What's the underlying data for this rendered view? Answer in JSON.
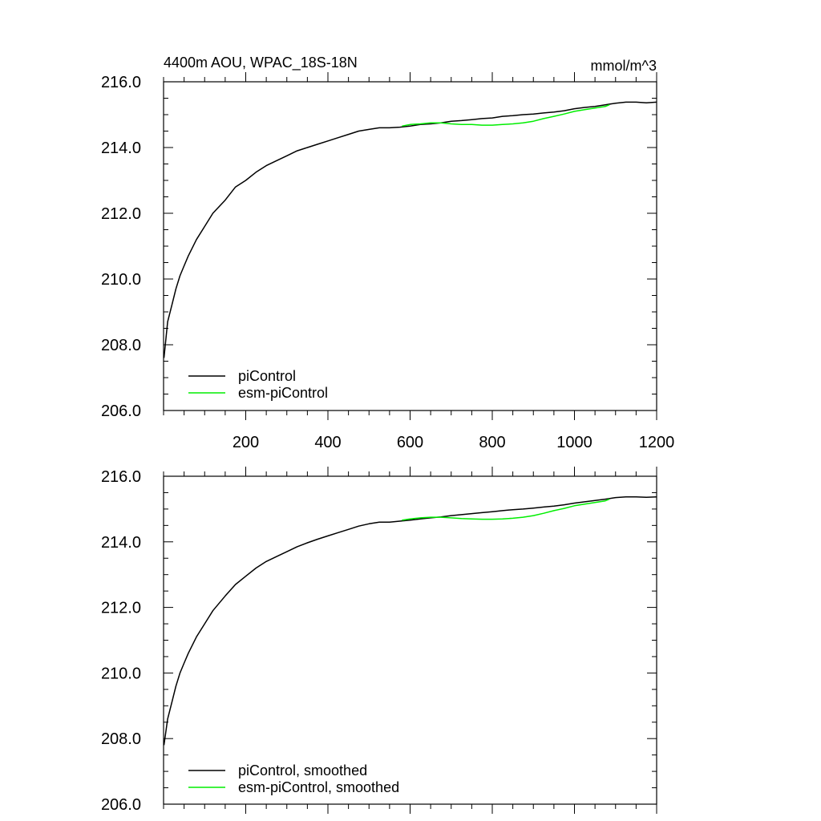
{
  "chart_data": [
    {
      "type": "line",
      "title_left": "4400m AOU, WPAC_18S-18N",
      "title_right": "mmol/m^3",
      "xlim": [
        0,
        1200
      ],
      "ylim": [
        206,
        216
      ],
      "y_ticks": [
        "206.0",
        "208.0",
        "210.0",
        "212.0",
        "214.0",
        "216.0"
      ],
      "x_ticks": [
        "200",
        "400",
        "600",
        "800",
        "1000",
        "1200"
      ],
      "grid": false,
      "legend_position": "bottom-left",
      "colors": {
        "piControl": "#000000",
        "esm-piControl": "#00ee00"
      },
      "series": [
        {
          "name": "piControl",
          "x": [
            1,
            10,
            20,
            30,
            40,
            50,
            60,
            80,
            100,
            120,
            150,
            175,
            200,
            225,
            250,
            275,
            300,
            325,
            350,
            375,
            400,
            425,
            450,
            475,
            500,
            525,
            550,
            575,
            600,
            625,
            650,
            675,
            700,
            725,
            750,
            775,
            800,
            825,
            850,
            875,
            900,
            925,
            950,
            975,
            1000,
            1025,
            1050,
            1075,
            1100,
            1125,
            1150,
            1175,
            1200
          ],
          "y": [
            207.6,
            208.7,
            209.2,
            209.7,
            210.1,
            210.4,
            210.7,
            211.2,
            211.6,
            212.0,
            212.4,
            212.8,
            213.0,
            213.25,
            213.45,
            213.6,
            213.75,
            213.9,
            214.0,
            214.1,
            214.2,
            214.3,
            214.4,
            214.5,
            214.55,
            214.6,
            214.6,
            214.62,
            214.65,
            214.7,
            214.72,
            214.75,
            214.8,
            214.82,
            214.85,
            214.88,
            214.9,
            214.95,
            214.97,
            215.0,
            215.02,
            215.05,
            215.08,
            215.12,
            215.18,
            215.22,
            215.25,
            215.3,
            215.35,
            215.38,
            215.38,
            215.36,
            215.38
          ]
        },
        {
          "name": "esm-piControl",
          "x": [
            580,
            600,
            625,
            650,
            675,
            700,
            725,
            750,
            775,
            800,
            825,
            850,
            875,
            900,
            925,
            950,
            975,
            1000,
            1025,
            1050,
            1075,
            1085
          ],
          "y": [
            214.65,
            214.7,
            214.72,
            214.75,
            214.75,
            214.72,
            214.7,
            214.7,
            214.68,
            214.68,
            214.7,
            214.72,
            214.75,
            214.8,
            214.88,
            214.95,
            215.02,
            215.1,
            215.15,
            215.2,
            215.25,
            215.3
          ]
        }
      ]
    },
    {
      "type": "line",
      "xlim": [
        0,
        1200
      ],
      "ylim": [
        206,
        216
      ],
      "y_ticks": [
        "206.0",
        "208.0",
        "210.0",
        "212.0",
        "214.0",
        "216.0"
      ],
      "grid": false,
      "legend_position": "bottom-left",
      "colors": {
        "piControl, smoothed": "#000000",
        "esm-piControl, smoothed": "#00ee00"
      },
      "series": [
        {
          "name": "piControl, smoothed",
          "x": [
            1,
            10,
            20,
            30,
            40,
            50,
            60,
            80,
            100,
            120,
            150,
            175,
            200,
            225,
            250,
            275,
            300,
            325,
            350,
            375,
            400,
            425,
            450,
            475,
            500,
            525,
            550,
            575,
            600,
            625,
            650,
            675,
            700,
            725,
            750,
            775,
            800,
            825,
            850,
            875,
            900,
            925,
            950,
            975,
            1000,
            1025,
            1050,
            1075,
            1100,
            1125,
            1150,
            1175,
            1200
          ],
          "y": [
            207.8,
            208.6,
            209.1,
            209.6,
            210.0,
            210.3,
            210.6,
            211.1,
            211.5,
            211.9,
            212.35,
            212.7,
            212.95,
            213.2,
            213.4,
            213.55,
            213.7,
            213.85,
            213.97,
            214.08,
            214.18,
            214.28,
            214.38,
            214.48,
            214.55,
            214.6,
            214.6,
            214.63,
            214.66,
            214.7,
            214.73,
            214.76,
            214.8,
            214.83,
            214.86,
            214.89,
            214.92,
            214.95,
            214.98,
            215.0,
            215.03,
            215.06,
            215.09,
            215.13,
            215.18,
            215.22,
            215.26,
            215.3,
            215.35,
            215.37,
            215.37,
            215.36,
            215.37
          ]
        },
        {
          "name": "esm-piControl, smoothed",
          "x": [
            580,
            600,
            625,
            650,
            675,
            700,
            725,
            750,
            775,
            800,
            825,
            850,
            875,
            900,
            925,
            950,
            975,
            1000,
            1025,
            1050,
            1075,
            1085
          ],
          "y": [
            214.66,
            214.7,
            214.73,
            214.75,
            214.75,
            214.73,
            214.71,
            214.7,
            214.69,
            214.69,
            214.7,
            214.72,
            214.75,
            214.8,
            214.87,
            214.95,
            215.02,
            215.1,
            215.15,
            215.2,
            215.25,
            215.3
          ]
        }
      ]
    }
  ]
}
